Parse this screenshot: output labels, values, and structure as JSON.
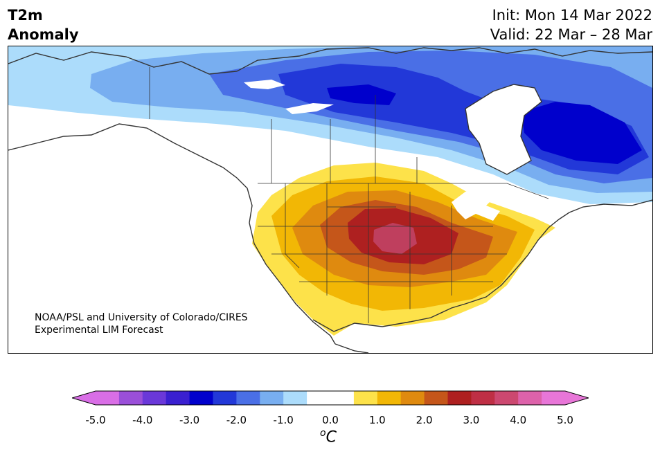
{
  "title": {
    "variable": "T2m",
    "subtitle": "Anomaly",
    "init": "Init: Mon 14 Mar 2022",
    "valid": "Valid: 22 Mar – 28 Mar"
  },
  "credit": {
    "line1": "NOAA/PSL and University of Colorado/CIRES",
    "line2": "Experimental LIM Forecast"
  },
  "colorbar": {
    "unit_main": "C",
    "unit_sup": "o",
    "ticks": [
      "-5.0",
      "-4.0",
      "-3.0",
      "-2.0",
      "-1.0",
      "0.0",
      "1.0",
      "2.0",
      "3.0",
      "4.0",
      "5.0"
    ],
    "colors": [
      "#d96ee6",
      "#9a4fd9",
      "#6a38d9",
      "#3a20d0",
      "#0000cc",
      "#2238d8",
      "#4a6fe6",
      "#78aef0",
      "#acdcfb",
      "#ffffff",
      "#ffffff",
      "#fde24a",
      "#f2b705",
      "#df8a0f",
      "#c5561a",
      "#ae2020",
      "#bf2f45",
      "#cc4870",
      "#dd62aa",
      "#e876d8"
    ],
    "min_color": "#d96ee6",
    "max_color": "#e876d8"
  }
}
